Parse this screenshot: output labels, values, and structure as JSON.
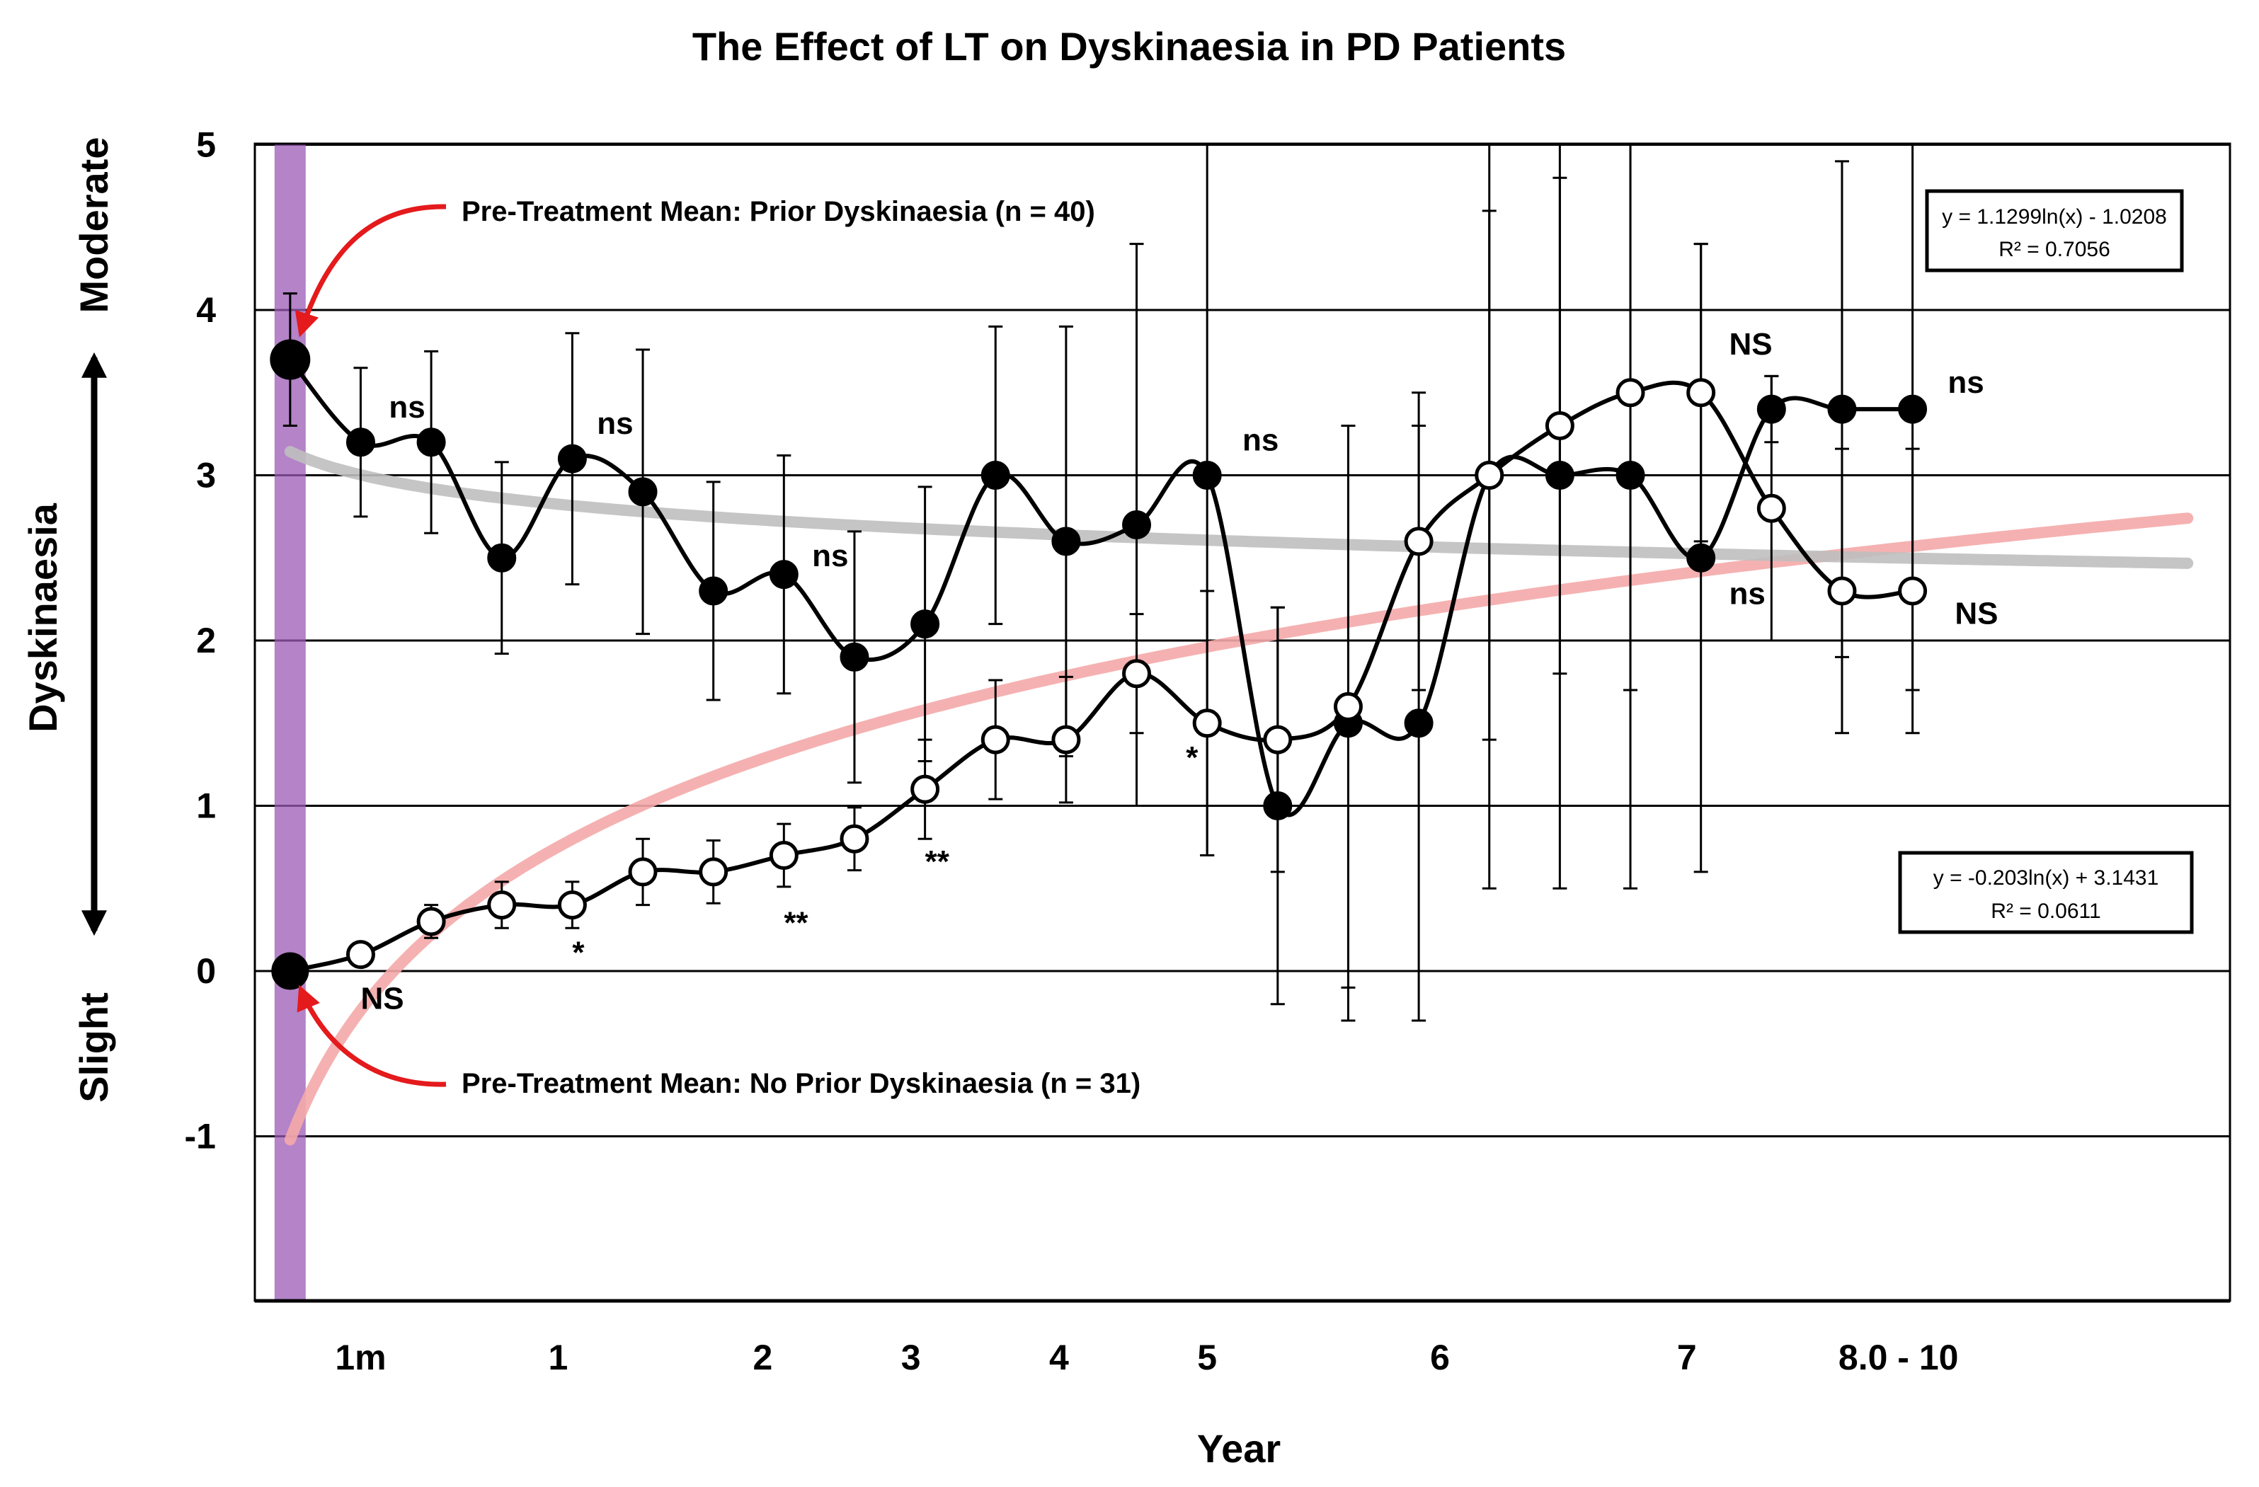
{
  "chart_data": {
    "type": "line",
    "title": "The Effect of LT on Dyskinaesia in PD Patients",
    "xlabel": "Year",
    "ylabel": "Dyskinaesia",
    "ylabel_top": "Moderate",
    "ylabel_bottom": "Slight",
    "ylim": [
      -2,
      5
    ],
    "yticks": [
      5,
      4,
      3,
      2,
      1,
      0,
      -1
    ],
    "x_tick_labels": [
      {
        "label": "1m",
        "x": 1
      },
      {
        "label": "1",
        "x": 3.8
      },
      {
        "label": "2",
        "x": 6.7
      },
      {
        "label": "3",
        "x": 8.8
      },
      {
        "label": "4",
        "x": 10.9
      },
      {
        "label": "5",
        "x": 13
      },
      {
        "label": "6",
        "x": 16.3
      },
      {
        "label": "7",
        "x": 19.8
      },
      {
        "label": "8.0 - 10",
        "x": 22.8
      }
    ],
    "xlim": [
      -0.5,
      27.5
    ],
    "series": [
      {
        "name": "Prior Dyskinaesia",
        "marker": "filled",
        "x": [
          0,
          1,
          2,
          3,
          4,
          5,
          6,
          7,
          8,
          9,
          10,
          11,
          12,
          13,
          14,
          15,
          16,
          17,
          18,
          19,
          20,
          21,
          22,
          23
        ],
        "values": [
          3.7,
          3.2,
          3.2,
          2.5,
          3.1,
          2.9,
          2.3,
          2.4,
          1.9,
          2.1,
          3.0,
          2.6,
          2.7,
          3.0,
          1.0,
          1.5,
          1.5,
          3.0,
          3.0,
          3.0,
          2.5,
          3.4,
          3.4,
          3.4
        ],
        "err": [
          0.4,
          0.45,
          0.55,
          0.58,
          0.76,
          0.86,
          0.66,
          0.72,
          0.76,
          0.83,
          0.9,
          1.3,
          1.7,
          2.3,
          1.2,
          1.8,
          1.8,
          2.5,
          2.5,
          2.5,
          1.9,
          0.2,
          1.5,
          1.7
        ]
      },
      {
        "name": "No Prior Dyskinaesia",
        "marker": "open",
        "x": [
          0,
          1,
          2,
          3,
          4,
          5,
          6,
          7,
          8,
          9,
          10,
          11,
          12,
          13,
          14,
          15,
          16,
          17,
          18,
          19,
          20,
          21,
          22,
          23
        ],
        "values": [
          0,
          0.1,
          0.3,
          0.4,
          0.4,
          0.6,
          0.6,
          0.7,
          0.8,
          1.1,
          1.4,
          1.4,
          1.8,
          1.5,
          1.4,
          1.6,
          2.6,
          3.0,
          3.3,
          3.5,
          3.5,
          2.8,
          2.3,
          2.3
        ],
        "err": [
          0,
          0,
          0.1,
          0.14,
          0.14,
          0.2,
          0.19,
          0.19,
          0.19,
          0.3,
          0.36,
          0.38,
          0.36,
          0.8,
          0.8,
          1.7,
          0.9,
          1.6,
          1.5,
          1.8,
          0.9,
          0.8,
          0.86,
          0.86
        ]
      }
    ],
    "trendlines": [
      {
        "name": "log fit (No Prior Dyskinaesia)",
        "a": 1.1299,
        "b": -1.0208,
        "color": "#f4a9a9",
        "equation": "y = 1.1299ln(x) - 1.0208",
        "r2": "R² = 0.7056"
      },
      {
        "name": "log fit (Prior Dyskinaesia)",
        "a": -0.203,
        "b": 3.1431,
        "color": "#bfbfbf",
        "equation": "y = -0.203ln(x) + 3.1431",
        "r2": "R² = 0.0611"
      }
    ],
    "annotations": {
      "prior_mean": "Pre-Treatment Mean: Prior Dyskinaesia (n = 40)",
      "no_prior_mean": "Pre-Treatment Mean: No Prior Dyskinaesia (n = 31)"
    },
    "significance_labels": [
      {
        "text": "ns",
        "x": 1.4,
        "y": 3.35
      },
      {
        "text": "ns",
        "x": 4.35,
        "y": 3.25
      },
      {
        "text": "ns",
        "x": 7.4,
        "y": 2.45
      },
      {
        "text": "ns",
        "x": 13.5,
        "y": 3.15
      },
      {
        "text": "NS",
        "x": 20.4,
        "y": 3.73
      },
      {
        "text": "ns",
        "x": 20.4,
        "y": 2.22
      },
      {
        "text": "ns",
        "x": 23.5,
        "y": 3.5
      },
      {
        "text": "NS",
        "x": 23.6,
        "y": 2.1
      },
      {
        "text": "NS",
        "x": 1.0,
        "y": -0.23
      },
      {
        "text": "*",
        "x": 4.0,
        "y": 0.05
      },
      {
        "text": "**",
        "x": 7.0,
        "y": 0.23
      },
      {
        "text": "**",
        "x": 9.0,
        "y": 0.6
      },
      {
        "text": "*",
        "x": 12.7,
        "y": 1.23
      }
    ],
    "highlight_band": {
      "x": 0,
      "color": "#9b59b6"
    },
    "arrow_color": "#e41a1c"
  }
}
